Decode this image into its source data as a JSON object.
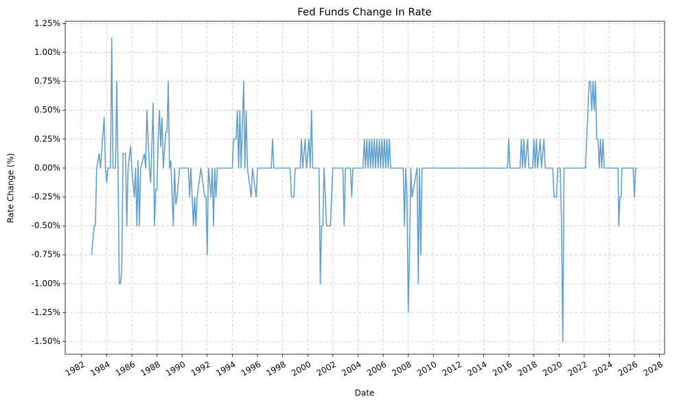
{
  "chart_data": {
    "type": "line",
    "title": "Fed Funds Change In Rate",
    "x_label": "Date",
    "y_label": "Rate Change (%)",
    "x": [
      1982.8,
      1983.0,
      1983.1,
      1983.2,
      1983.4,
      1983.5,
      1983.8,
      1983.9,
      1984.0,
      1984.1,
      1984.3,
      1984.4,
      1984.5,
      1984.7,
      1984.8,
      1984.9,
      1985.0,
      1985.1,
      1985.2,
      1985.3,
      1985.5,
      1985.6,
      1985.7,
      1985.9,
      1986.0,
      1986.2,
      1986.3,
      1986.4,
      1986.5,
      1986.6,
      1986.7,
      1987.0,
      1987.1,
      1987.2,
      1987.4,
      1987.5,
      1987.7,
      1987.8,
      1987.9,
      1988.0,
      1988.1,
      1988.2,
      1988.3,
      1988.4,
      1988.5,
      1988.7,
      1988.8,
      1988.9,
      1989.0,
      1989.1,
      1989.3,
      1989.4,
      1989.5,
      1989.6,
      1989.8,
      1990.5,
      1990.6,
      1990.7,
      1990.9,
      1991.0,
      1991.1,
      1991.2,
      1991.5,
      1991.8,
      1991.9,
      1992.0,
      1992.1,
      1992.3,
      1992.4,
      1992.5,
      1992.6,
      1992.7,
      1992.8,
      1994.0,
      1994.1,
      1994.3,
      1994.4,
      1994.5,
      1994.6,
      1994.7,
      1994.9,
      1995.0,
      1995.1,
      1995.2,
      1995.5,
      1995.6,
      1995.9,
      1996.0,
      1997.1,
      1997.2,
      1997.3,
      1998.6,
      1998.7,
      1998.9,
      1999.0,
      1999.4,
      1999.5,
      1999.6,
      1999.8,
      1999.9,
      2000.1,
      2000.2,
      2000.3,
      2000.4,
      2000.9,
      2001.0,
      2001.1,
      2001.2,
      2001.3,
      2001.5,
      2001.8,
      2001.9,
      2002.0,
      2002.8,
      2002.9,
      2003.0,
      2003.4,
      2003.5,
      2003.6,
      2004.4,
      2004.5,
      2004.6,
      2004.7,
      2004.8,
      2004.9,
      2005.0,
      2005.1,
      2005.2,
      2005.3,
      2005.4,
      2005.5,
      2005.6,
      2005.7,
      2005.8,
      2005.9,
      2006.0,
      2006.1,
      2006.2,
      2006.3,
      2006.4,
      2006.5,
      2006.6,
      2007.6,
      2007.7,
      2007.8,
      2007.9,
      2008.0,
      2008.1,
      2008.2,
      2008.3,
      2008.7,
      2008.8,
      2008.9,
      2009.0,
      2009.1,
      2015.9,
      2016.0,
      2016.1,
      2016.9,
      2017.0,
      2017.1,
      2017.2,
      2017.3,
      2017.5,
      2017.6,
      2017.9,
      2018.0,
      2018.1,
      2018.2,
      2018.3,
      2018.5,
      2018.6,
      2018.8,
      2018.9,
      2019.5,
      2019.6,
      2019.8,
      2019.9,
      2020.1,
      2020.2,
      2020.3,
      2020.4,
      2022.1,
      2022.2,
      2022.3,
      2022.4,
      2022.5,
      2022.6,
      2022.7,
      2022.8,
      2022.9,
      2023.0,
      2023.1,
      2023.2,
      2023.3,
      2023.4,
      2023.5,
      2023.6,
      2024.7,
      2024.75,
      2024.85,
      2024.95,
      2025.0,
      2025.9,
      2026.0,
      2026.1,
      2026.2
    ],
    "series": [
      {
        "color": "#62a0cb",
        "values": [
          -0.75,
          -0.5,
          -0.5,
          0,
          0.125,
          0,
          0.4375,
          0,
          -0.125,
          0,
          0,
          1.125,
          0,
          0,
          0.75,
          0,
          -1,
          -1,
          -0.875,
          0.125,
          0.125,
          -0.5,
          0,
          0.1875,
          0,
          -0.25,
          0,
          -0.5,
          0.0625,
          -0.5,
          0,
          0.125,
          0,
          0.5,
          0,
          -0.125,
          0.5625,
          -0.5,
          -0.1875,
          -0.1875,
          0.25,
          0.5,
          0.1875,
          0.4375,
          0,
          0.3125,
          0.3125,
          0.75,
          0,
          0.0625,
          -0.5,
          0,
          -0.3125,
          -0.25,
          0,
          0,
          -0.25,
          0,
          -0.5,
          -0.25,
          -0.5,
          -0.25,
          0,
          -0.25,
          -0.25,
          -0.75,
          0,
          -0.25,
          0,
          -0.5,
          0,
          -0.25,
          0,
          0,
          0.25,
          0.25,
          0.5,
          0,
          0.5,
          0,
          0.75,
          0,
          0.5,
          0,
          -0.25,
          0,
          -0.25,
          0,
          0,
          0.25,
          0,
          0,
          -0.25,
          -0.25,
          0,
          0,
          0.25,
          0,
          0.25,
          0,
          0.25,
          0,
          0.5,
          0,
          0,
          -1,
          -0.5,
          -0.5,
          0,
          -0.5,
          -0.5,
          -0.25,
          0,
          0,
          -0.5,
          0,
          0,
          -0.25,
          0,
          0,
          0.25,
          0,
          0.25,
          0,
          0.25,
          0,
          0.25,
          0,
          0.25,
          0,
          0.25,
          0,
          0.25,
          0,
          0.25,
          0,
          0.25,
          0,
          0.25,
          0,
          0.25,
          0,
          0,
          -0.5,
          0,
          -0.25,
          -1.25,
          -0.75,
          0,
          -0.25,
          0,
          -1,
          0,
          -0.75,
          0,
          0,
          0.25,
          0,
          0,
          0.25,
          0,
          0.25,
          0,
          0.25,
          0,
          0,
          0.25,
          0,
          0.25,
          0,
          0.25,
          0,
          0.25,
          0,
          0,
          -0.25,
          -0.25,
          0,
          0,
          -0.5,
          -1.5,
          0,
          0,
          0.25,
          0.5,
          0.75,
          0.75,
          0.5,
          0.75,
          0.5,
          0.75,
          0.25,
          0.25,
          0,
          0.25,
          0,
          0.25,
          0,
          0,
          -0.5,
          -0.25,
          -0.25,
          0,
          0,
          -0.25,
          0,
          0
        ]
      }
    ],
    "xlim": [
      1980.7,
      2028.4
    ],
    "xticks": [
      1982,
      1984,
      1986,
      1988,
      1990,
      1992,
      1994,
      1996,
      1998,
      2000,
      2002,
      2004,
      2006,
      2008,
      2010,
      2012,
      2014,
      2016,
      2018,
      2020,
      2022,
      2024,
      2026,
      2028
    ],
    "ylim": [
      -1.61,
      1.27
    ],
    "yticks": [
      {
        "value": -1.5,
        "label": "-1.50%"
      },
      {
        "value": -1.25,
        "label": "-1.25%"
      },
      {
        "value": -1.0,
        "label": "-1.00%"
      },
      {
        "value": -0.75,
        "label": "-0.75%"
      },
      {
        "value": -0.5,
        "label": "-0.50%"
      },
      {
        "value": -0.25,
        "label": "-0.25%"
      },
      {
        "value": 0,
        "label": "0.00%"
      },
      {
        "value": 0.25,
        "label": "0.25%"
      },
      {
        "value": 0.5,
        "label": "0.50%"
      },
      {
        "value": 0.75,
        "label": "0.75%"
      },
      {
        "value": 1.0,
        "label": "1.00%"
      },
      {
        "value": 1.25,
        "label": "1.25%"
      }
    ],
    "grid": true
  }
}
